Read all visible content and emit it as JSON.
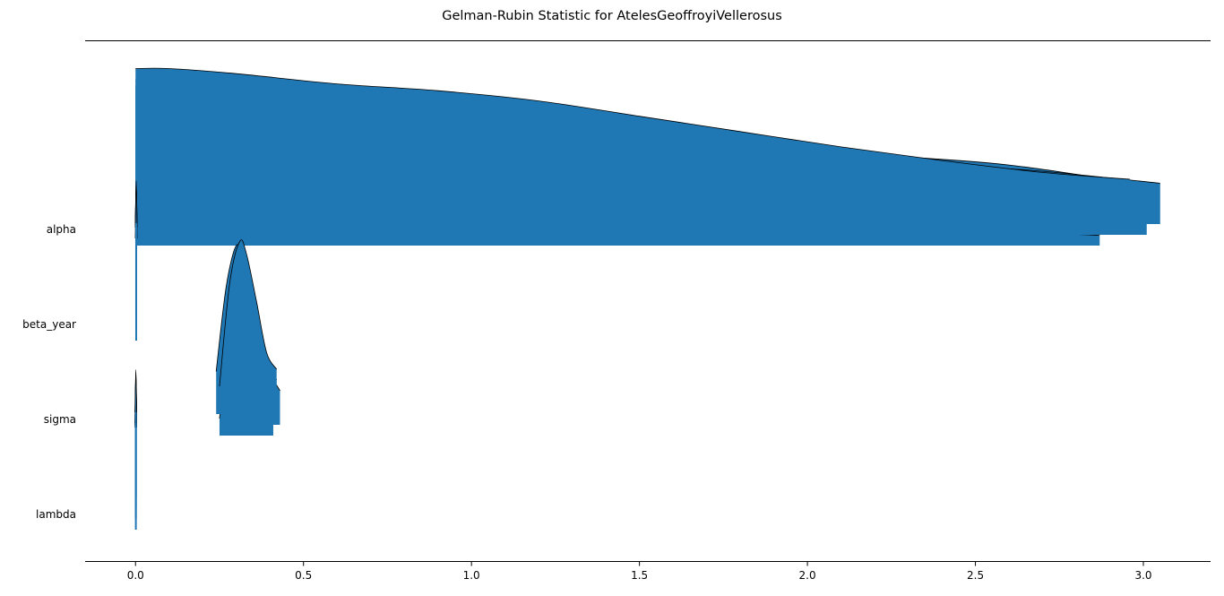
{
  "chart_data": {
    "type": "area",
    "title": "Gelman-Rubin Statistic for AtelesGeoffroyiVellerosus",
    "xlabel": "",
    "ylabel": "",
    "xlim": [
      -0.15,
      3.2
    ],
    "x_ticks": [
      0.0,
      0.5,
      1.0,
      1.5,
      2.0,
      2.5,
      3.0
    ],
    "x_tick_labels": [
      "0.0",
      "0.5",
      "1.0",
      "1.5",
      "2.0",
      "2.5",
      "3.0"
    ],
    "categories": [
      "alpha",
      "beta_year",
      "sigma",
      "lambda"
    ],
    "fill_color": "#1f77b4",
    "line_color": "#000000",
    "grid": false,
    "legend": "none",
    "series": [
      {
        "category": "alpha",
        "chains": [
          {
            "x": [
              0.0,
              0.05,
              0.15,
              0.3,
              0.5,
              0.75,
              1.0,
              1.25,
              1.5,
              2.0,
              2.5,
              2.87
            ],
            "density": [
              0.93,
              0.94,
              0.92,
              0.85,
              0.74,
              0.6,
              0.48,
              0.38,
              0.3,
              0.2,
              0.1,
              0.06
            ]
          },
          {
            "x": [
              0.0,
              0.1,
              0.3,
              0.6,
              0.9,
              1.1,
              1.35,
              1.6,
              1.9,
              2.2,
              2.6,
              3.01
            ],
            "density": [
              0.91,
              0.92,
              0.88,
              0.83,
              0.76,
              0.68,
              0.6,
              0.55,
              0.52,
              0.47,
              0.41,
              0.29
            ]
          },
          {
            "x": [
              0.0,
              0.1,
              0.3,
              0.6,
              1.0,
              1.2,
              1.5,
              1.8,
              2.1,
              2.4,
              2.7,
              3.05
            ],
            "density": [
              0.81,
              0.81,
              0.79,
              0.74,
              0.66,
              0.57,
              0.5,
              0.46,
              0.4,
              0.35,
              0.31,
              0.24
            ]
          },
          {
            "x": [
              0.0,
              0.1,
              0.3,
              0.6,
              0.9,
              1.2,
              1.5,
              1.8,
              2.1,
              2.4,
              2.7,
              2.96
            ],
            "density": [
              0.85,
              0.85,
              0.82,
              0.76,
              0.72,
              0.66,
              0.57,
              0.48,
              0.39,
              0.31,
              0.24,
              0.2
            ]
          }
        ]
      },
      {
        "category": "beta_year",
        "chains": [
          {
            "x": [
              0.0,
              0.002,
              0.004
            ],
            "density": [
              0.6,
              0.9,
              0.6
            ]
          },
          {
            "x": [
              0.0,
              0.002,
              0.004
            ],
            "density": [
              0.6,
              0.85,
              0.6
            ]
          },
          {
            "x": [
              0.0,
              0.002,
              0.004
            ],
            "density": [
              0.55,
              0.8,
              0.55
            ]
          },
          {
            "x": [
              0.0,
              0.002,
              0.004
            ],
            "density": [
              0.5,
              0.75,
              0.5
            ]
          }
        ]
      },
      {
        "category": "sigma",
        "chains": [
          {
            "x": [
              0.25,
              0.28,
              0.3,
              0.32,
              0.35,
              0.38,
              0.41
            ],
            "density": [
              0.1,
              0.7,
              0.98,
              0.95,
              0.65,
              0.3,
              0.2
            ]
          },
          {
            "x": [
              0.26,
              0.29,
              0.31,
              0.33,
              0.36,
              0.39,
              0.43
            ],
            "density": [
              0.2,
              0.75,
              0.98,
              0.9,
              0.6,
              0.35,
              0.2
            ]
          },
          {
            "x": [
              0.24,
              0.27,
              0.3,
              0.32,
              0.35,
              0.38,
              0.42
            ],
            "density": [
              0.25,
              0.75,
              0.99,
              0.9,
              0.65,
              0.4,
              0.2
            ]
          },
          {
            "x": [
              0.25,
              0.28,
              0.31,
              0.33,
              0.36,
              0.39,
              0.42
            ],
            "density": [
              0.1,
              0.7,
              0.95,
              0.88,
              0.6,
              0.3,
              0.2
            ]
          }
        ]
      },
      {
        "category": "lambda",
        "chains": [
          {
            "x": [
              0.0,
              0.001,
              0.002
            ],
            "density": [
              0.6,
              0.9,
              0.6
            ]
          },
          {
            "x": [
              0.0,
              0.001,
              0.002
            ],
            "density": [
              0.55,
              0.85,
              0.55
            ]
          },
          {
            "x": [
              0.0,
              0.001,
              0.002
            ],
            "density": [
              0.5,
              0.8,
              0.5
            ]
          },
          {
            "x": [
              0.0,
              0.001,
              0.002
            ],
            "density": [
              0.5,
              0.75,
              0.5
            ]
          }
        ]
      }
    ]
  }
}
